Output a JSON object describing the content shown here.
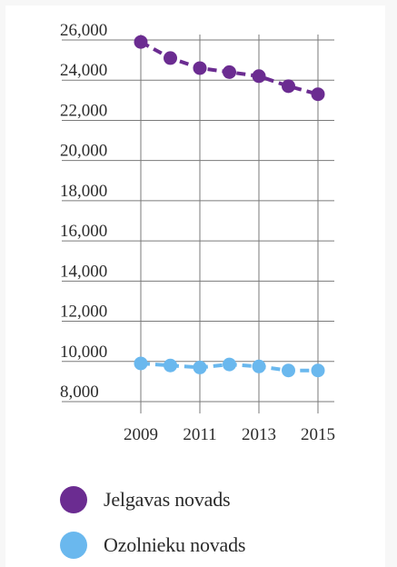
{
  "chart_data": {
    "type": "line",
    "x": [
      2009,
      2010,
      2011,
      2012,
      2013,
      2014,
      2015
    ],
    "x_tick_labels": [
      "2009",
      "2011",
      "2013",
      "2015"
    ],
    "y_tick_labels": [
      "26,000",
      "24,000",
      "22,000",
      "20,000",
      "18,000",
      "16,000",
      "14,000",
      "12,000",
      "10,000",
      "8,000"
    ],
    "ylim": [
      8000,
      26000
    ],
    "xlim": [
      2009,
      2015
    ],
    "grid": true,
    "line_style": "dashed",
    "legend_position": "bottom",
    "series": [
      {
        "name": "Jelgavas novads",
        "color": "#6b2c91",
        "values": [
          25900,
          25100,
          24600,
          24400,
          24200,
          23700,
          23300
        ]
      },
      {
        "name": "Ozolnieku novads",
        "color": "#6ab8ee",
        "values": [
          9900,
          9800,
          9700,
          9850,
          9750,
          9550,
          9550
        ]
      }
    ]
  }
}
